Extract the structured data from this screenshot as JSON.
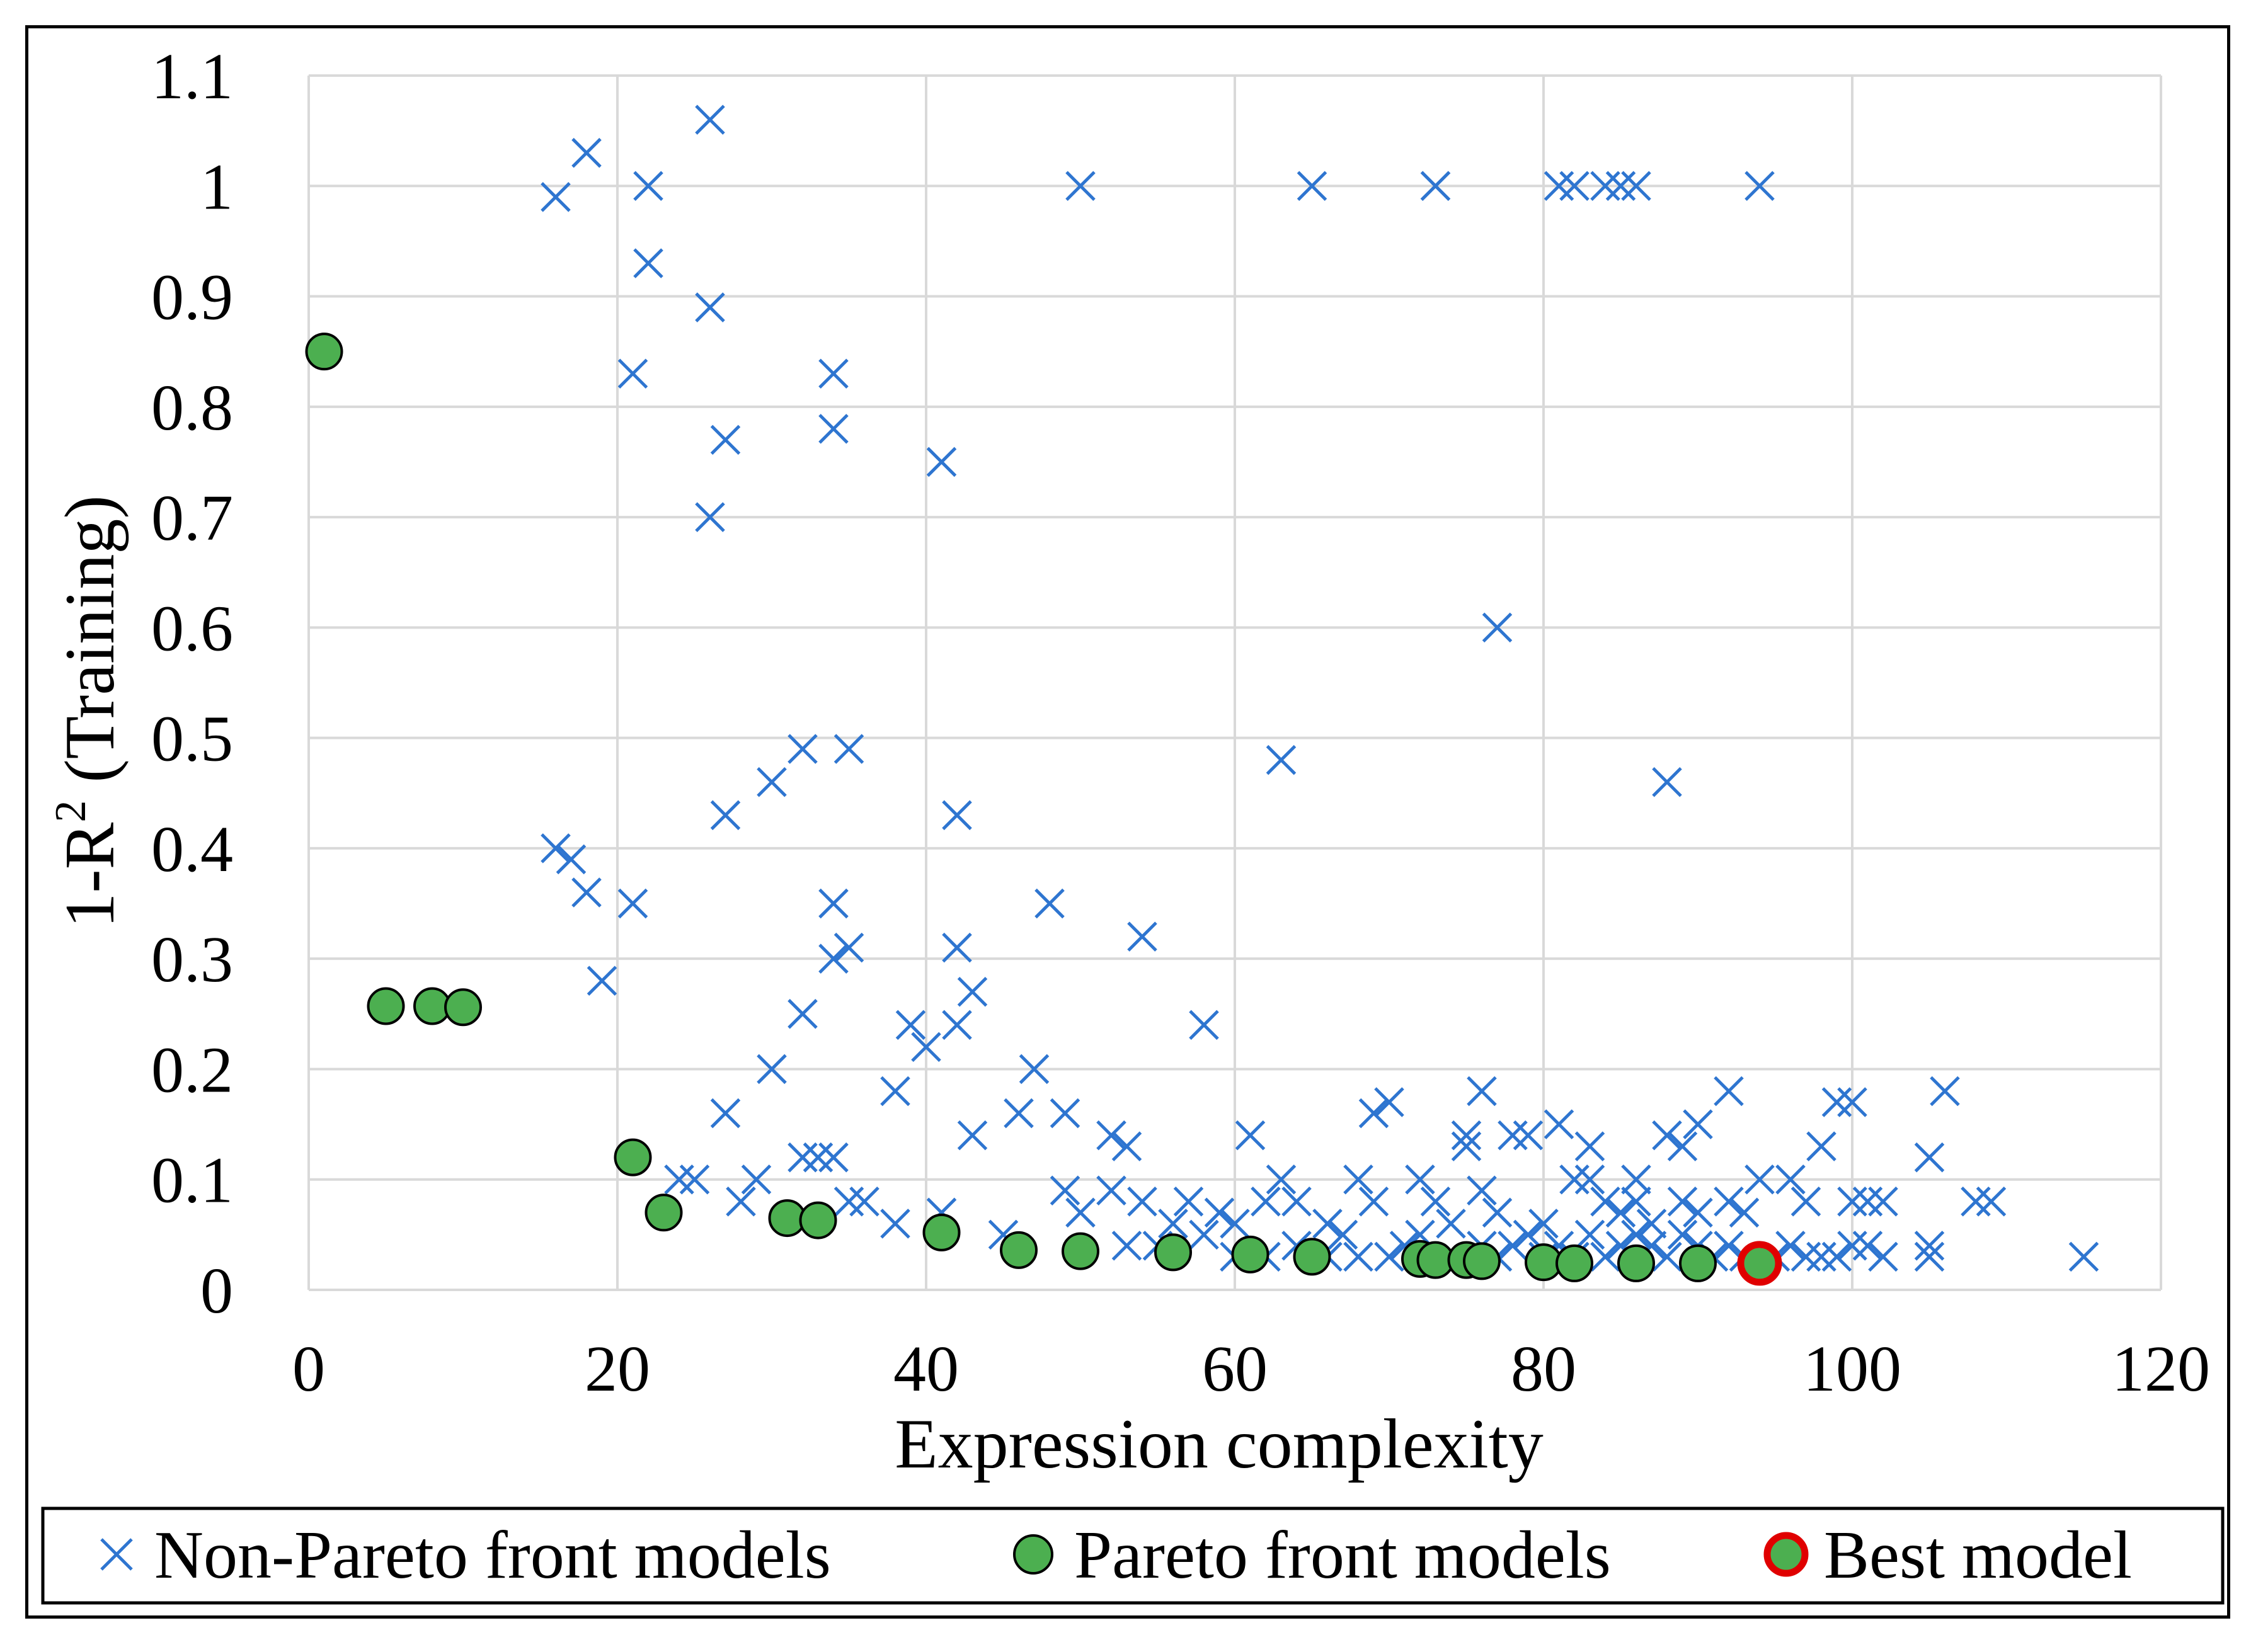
{
  "chart_data": {
    "type": "scatter",
    "title": "",
    "xlabel": "Expression complexity",
    "ylabel_main": "1-R",
    "ylabel_sup": "2",
    "ylabel_rest": " (Training)",
    "xlim": [
      0,
      120
    ],
    "ylim": [
      0,
      1.1
    ],
    "xticks": [
      "0",
      "20",
      "40",
      "60",
      "80",
      "100",
      "120"
    ],
    "yticks": [
      "0",
      "0.1",
      "0.2",
      "0.3",
      "0.4",
      "0.5",
      "0.6",
      "0.7",
      "0.8",
      "0.9",
      "1",
      "1.1"
    ],
    "grid": true,
    "legend_position": "bottom",
    "colors": {
      "non_pareto": "#2e75d0",
      "pareto_fill": "#4caf50",
      "best_ring": "#e00000",
      "grid": "#d9d9d9"
    },
    "series": [
      {
        "name": "Non-Pareto front models",
        "marker": "x",
        "points": [
          [
            16,
            0.99
          ],
          [
            18,
            1.03
          ],
          [
            22,
            1.0
          ],
          [
            26,
            1.06
          ],
          [
            22,
            0.93
          ],
          [
            26,
            0.89
          ],
          [
            21,
            0.83
          ],
          [
            27,
            0.77
          ],
          [
            26,
            0.7
          ],
          [
            34,
            0.83
          ],
          [
            34,
            0.78
          ],
          [
            41,
            0.75
          ],
          [
            50,
            1.0
          ],
          [
            65,
            1.0
          ],
          [
            73,
            1.0
          ],
          [
            73,
            1.0
          ],
          [
            81,
            1.0
          ],
          [
            82,
            1.0
          ],
          [
            84,
            1.0
          ],
          [
            85,
            1.0
          ],
          [
            86,
            1.0
          ],
          [
            94,
            1.0
          ],
          [
            77,
            0.6
          ],
          [
            63,
            0.48
          ],
          [
            88,
            0.46
          ],
          [
            32,
            0.49
          ],
          [
            35,
            0.49
          ],
          [
            30,
            0.46
          ],
          [
            27,
            0.43
          ],
          [
            42,
            0.43
          ],
          [
            16,
            0.4
          ],
          [
            17,
            0.39
          ],
          [
            18,
            0.36
          ],
          [
            21,
            0.35
          ],
          [
            19,
            0.28
          ],
          [
            34,
            0.35
          ],
          [
            34,
            0.3
          ],
          [
            35,
            0.31
          ],
          [
            42,
            0.31
          ],
          [
            48,
            0.35
          ],
          [
            54,
            0.32
          ],
          [
            43,
            0.27
          ],
          [
            39,
            0.24
          ],
          [
            42,
            0.24
          ],
          [
            58,
            0.24
          ],
          [
            32,
            0.25
          ],
          [
            40,
            0.22
          ],
          [
            30,
            0.2
          ],
          [
            38,
            0.18
          ],
          [
            47,
            0.2
          ],
          [
            27,
            0.16
          ],
          [
            46,
            0.16
          ],
          [
            49,
            0.16
          ],
          [
            52,
            0.14
          ],
          [
            53,
            0.13
          ],
          [
            43,
            0.14
          ],
          [
            61,
            0.14
          ],
          [
            32,
            0.12
          ],
          [
            33,
            0.12
          ],
          [
            34,
            0.12
          ],
          [
            29,
            0.1
          ],
          [
            24,
            0.1
          ],
          [
            25,
            0.1
          ],
          [
            28,
            0.08
          ],
          [
            35,
            0.08
          ],
          [
            36,
            0.08
          ],
          [
            38,
            0.06
          ],
          [
            41,
            0.07
          ],
          [
            45,
            0.05
          ],
          [
            49,
            0.09
          ],
          [
            50,
            0.07
          ],
          [
            52,
            0.09
          ],
          [
            54,
            0.08
          ],
          [
            56,
            0.06
          ],
          [
            57,
            0.08
          ],
          [
            59,
            0.07
          ],
          [
            60,
            0.06
          ],
          [
            62,
            0.08
          ],
          [
            63,
            0.1
          ],
          [
            64,
            0.08
          ],
          [
            66,
            0.06
          ],
          [
            67,
            0.05
          ],
          [
            68,
            0.1
          ],
          [
            69,
            0.16
          ],
          [
            70,
            0.17
          ],
          [
            69,
            0.08
          ],
          [
            72,
            0.1
          ],
          [
            73,
            0.08
          ],
          [
            74,
            0.06
          ],
          [
            75,
            0.14
          ],
          [
            75,
            0.13
          ],
          [
            76,
            0.18
          ],
          [
            76,
            0.09
          ],
          [
            77,
            0.07
          ],
          [
            78,
            0.14
          ],
          [
            79,
            0.14
          ],
          [
            80,
            0.06
          ],
          [
            81,
            0.15
          ],
          [
            82,
            0.1
          ],
          [
            83,
            0.13
          ],
          [
            83,
            0.1
          ],
          [
            84,
            0.08
          ],
          [
            85,
            0.07
          ],
          [
            86,
            0.1
          ],
          [
            86,
            0.08
          ],
          [
            87,
            0.06
          ],
          [
            88,
            0.14
          ],
          [
            89,
            0.13
          ],
          [
            89,
            0.08
          ],
          [
            90,
            0.15
          ],
          [
            90,
            0.07
          ],
          [
            92,
            0.18
          ],
          [
            92,
            0.08
          ],
          [
            93,
            0.07
          ],
          [
            94,
            0.1
          ],
          [
            96,
            0.1
          ],
          [
            97,
            0.08
          ],
          [
            98,
            0.13
          ],
          [
            99,
            0.17
          ],
          [
            100,
            0.17
          ],
          [
            100,
            0.08
          ],
          [
            101,
            0.08
          ],
          [
            102,
            0.08
          ],
          [
            105,
            0.12
          ],
          [
            106,
            0.18
          ],
          [
            108,
            0.08
          ],
          [
            109,
            0.08
          ],
          [
            105,
            0.04
          ],
          [
            115,
            0.03
          ],
          [
            53,
            0.04
          ],
          [
            55,
            0.04
          ],
          [
            58,
            0.05
          ],
          [
            60,
            0.03
          ],
          [
            62,
            0.03
          ],
          [
            64,
            0.04
          ],
          [
            66,
            0.03
          ],
          [
            68,
            0.03
          ],
          [
            70,
            0.03
          ],
          [
            71,
            0.04
          ],
          [
            72,
            0.05
          ],
          [
            74,
            0.03
          ],
          [
            76,
            0.04
          ],
          [
            77,
            0.03
          ],
          [
            78,
            0.04
          ],
          [
            79,
            0.05
          ],
          [
            80,
            0.03
          ],
          [
            81,
            0.04
          ],
          [
            82,
            0.03
          ],
          [
            83,
            0.05
          ],
          [
            84,
            0.03
          ],
          [
            85,
            0.04
          ],
          [
            86,
            0.05
          ],
          [
            87,
            0.04
          ],
          [
            88,
            0.03
          ],
          [
            89,
            0.05
          ],
          [
            90,
            0.04
          ],
          [
            91,
            0.03
          ],
          [
            92,
            0.04
          ],
          [
            93,
            0.03
          ],
          [
            95,
            0.03
          ],
          [
            96,
            0.04
          ],
          [
            97,
            0.03
          ],
          [
            98,
            0.03
          ],
          [
            99,
            0.03
          ],
          [
            100,
            0.04
          ],
          [
            101,
            0.04
          ],
          [
            102,
            0.03
          ],
          [
            105,
            0.03
          ]
        ]
      },
      {
        "name": "Pareto front models",
        "marker": "circle",
        "points": [
          [
            1,
            0.85
          ],
          [
            5,
            0.257
          ],
          [
            8,
            0.257
          ],
          [
            10,
            0.256
          ],
          [
            21,
            0.12
          ],
          [
            23,
            0.07
          ],
          [
            31,
            0.065
          ],
          [
            33,
            0.063
          ],
          [
            41,
            0.052
          ],
          [
            46,
            0.036
          ],
          [
            50,
            0.035
          ],
          [
            56,
            0.034
          ],
          [
            61,
            0.032
          ],
          [
            65,
            0.03
          ],
          [
            72,
            0.028
          ],
          [
            73,
            0.027
          ],
          [
            75,
            0.027
          ],
          [
            76,
            0.026
          ],
          [
            80,
            0.025
          ],
          [
            82,
            0.024
          ],
          [
            86,
            0.024
          ],
          [
            90,
            0.024
          ]
        ]
      },
      {
        "name": "Best model",
        "marker": "ringed-circle",
        "points": [
          [
            94,
            0.024
          ]
        ]
      }
    ]
  }
}
